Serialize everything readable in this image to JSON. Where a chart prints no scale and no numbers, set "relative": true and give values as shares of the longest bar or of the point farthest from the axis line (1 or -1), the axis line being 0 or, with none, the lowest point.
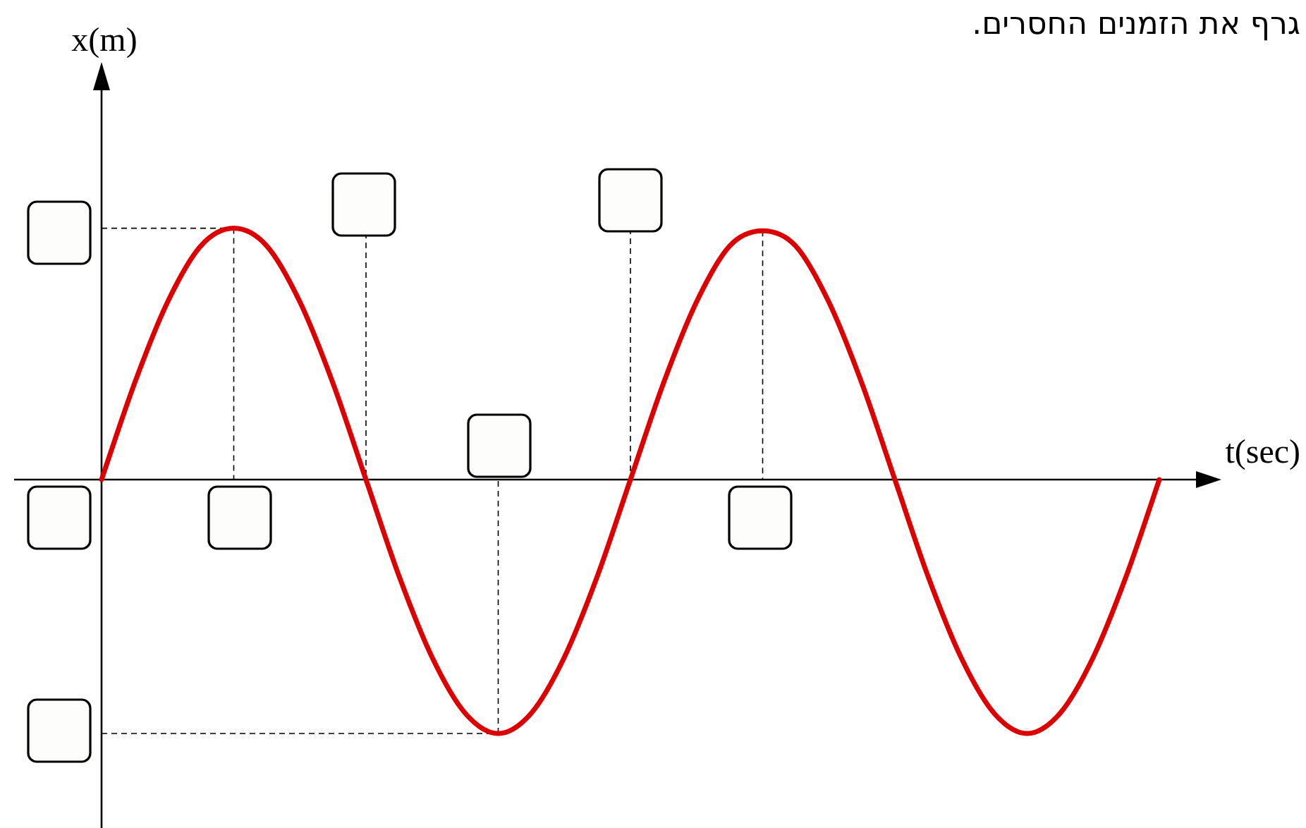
{
  "chart_data": {
    "type": "line",
    "relative": true,
    "xlabel": "t(sec)",
    "ylabel": "x(m)",
    "annotations": [
      "גרף את הזמנים החסרים."
    ],
    "categories": [
      null,
      null,
      null,
      null,
      null,
      null,
      null,
      null,
      null,
      null,
      null,
      null,
      null,
      null,
      null,
      null,
      null,
      null,
      null,
      null,
      null,
      null,
      null,
      null,
      null,
      null,
      null,
      null,
      null,
      null,
      null,
      null,
      null
    ],
    "series": [
      {
        "color": "#dd0000",
        "values": [
          0,
          0.38,
          0.7,
          0.92,
          0.99,
          0.92,
          0.7,
          0.38,
          0,
          -0.38,
          -0.7,
          -0.92,
          -1,
          -0.92,
          -0.7,
          -0.38,
          0,
          0.38,
          0.7,
          0.92,
          0.98,
          0.92,
          0.7,
          0.38,
          0,
          -0.38,
          -0.7,
          -0.92,
          -1,
          -0.92,
          -0.7,
          -0.38,
          0
        ]
      }
    ]
  }
}
